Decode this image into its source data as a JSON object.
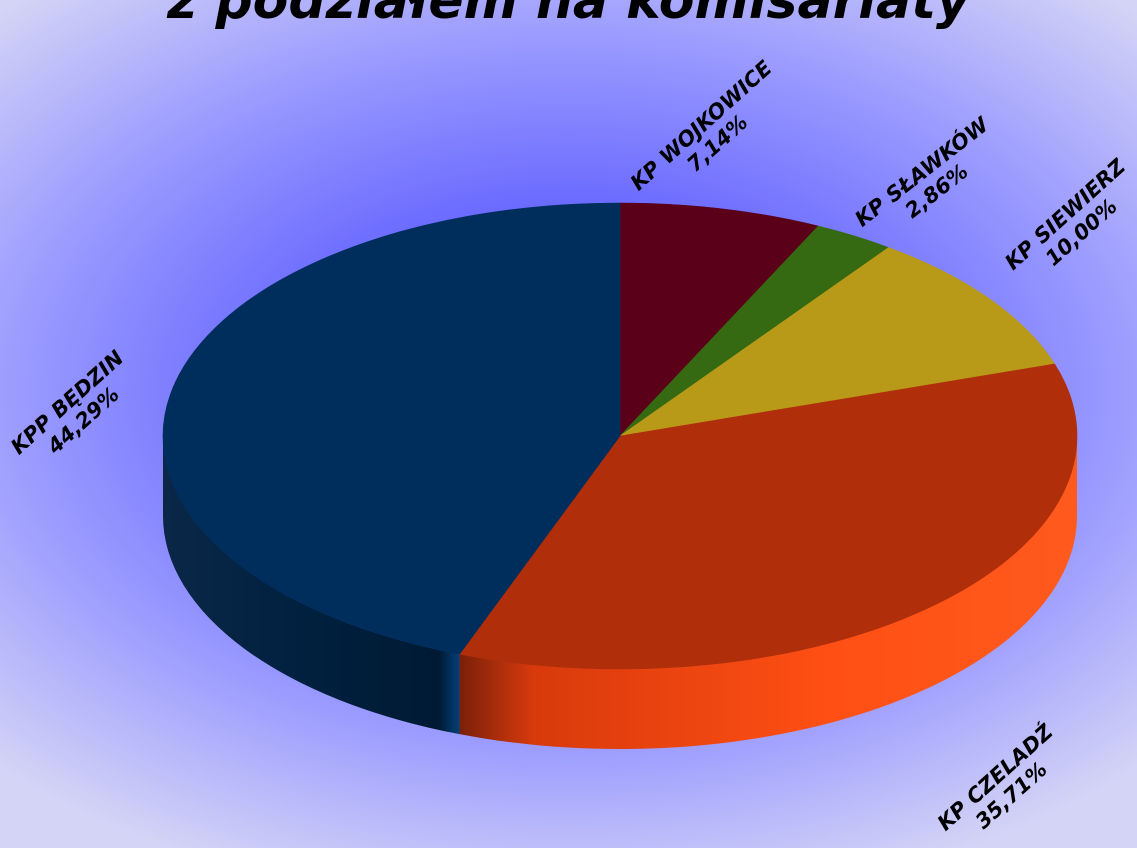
{
  "chart_data": {
    "type": "pie",
    "title": "z podziałem na komisariaty",
    "slices": [
      {
        "label": "KP WOJKOWICE",
        "value_text": "7,14%",
        "value": 7.14,
        "color": "#5a0019",
        "side": "#3a0010"
      },
      {
        "label": "KP SŁAWKÓW",
        "value_text": "2,86%",
        "value": 2.86,
        "color": "#356a12",
        "side": "#24480c"
      },
      {
        "label": "KP SIEWIERZ",
        "value_text": "10,00%",
        "value": 10.0,
        "color": "#b89a18",
        "side": "#8a7210"
      },
      {
        "label": "KP CZELADŹ",
        "value_text": "35,71%",
        "value": 35.71,
        "color": "#b02e0a",
        "side": "#ff4f14"
      },
      {
        "label": "KPP BĘDZIN",
        "value_text": "44,29%",
        "value": 44.29,
        "color": "#002e5c",
        "side": "#00203f"
      }
    ]
  }
}
